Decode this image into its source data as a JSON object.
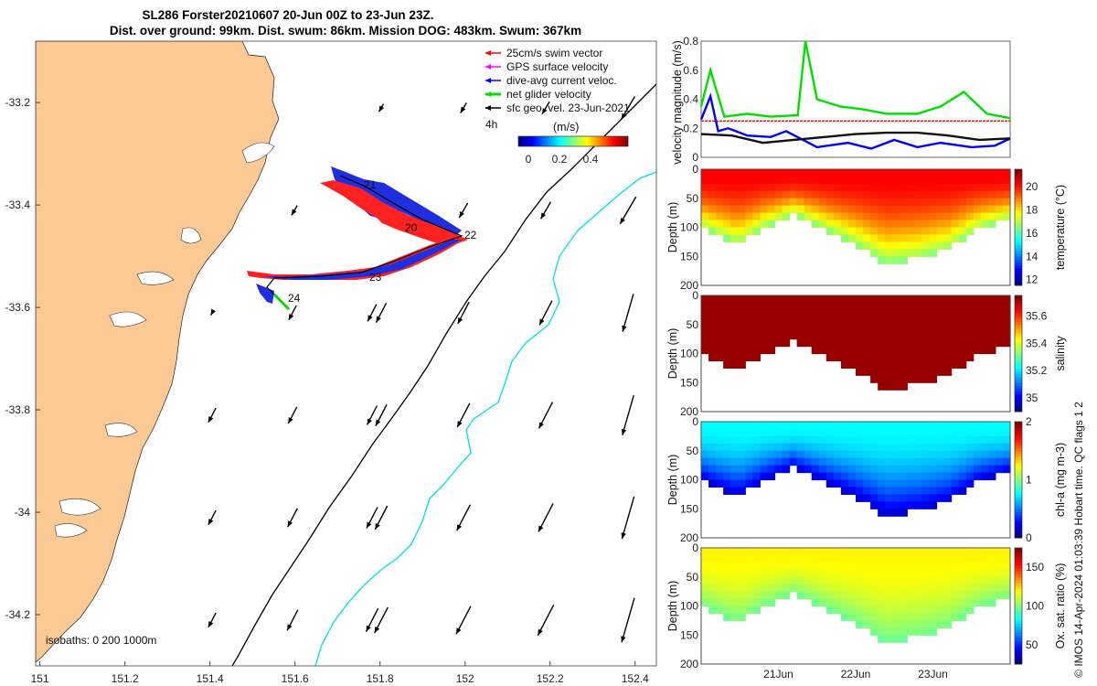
{
  "header": {
    "title_line1": "SL286 Forster20210607 20-Jun 00Z to 23-Jun 23Z.",
    "title_line2": "Dist. over ground: 99km. Dist. swum: 86km. Mission DOG: 483km. Swum: 367km"
  },
  "map": {
    "x_ticks": [
      "151",
      "151.2",
      "151.4",
      "151.6",
      "151.8",
      "152",
      "152.2",
      "152.4"
    ],
    "y_ticks": [
      "-33.2",
      "-33.4",
      "-33.6",
      "-33.8",
      "-34",
      "-34.2"
    ],
    "xlim": [
      150.99,
      152.45
    ],
    "ylim": [
      -34.3,
      -33.08
    ],
    "legend": [
      {
        "label": "25cm/s swim vector",
        "color": "#ff0000"
      },
      {
        "label": "GPS surface velocity",
        "color": "#ff00ff"
      },
      {
        "label": "dive-avg current veloc.",
        "color": "#0000ff"
      },
      {
        "label": "net glider velocity",
        "color": "#00dd00"
      },
      {
        "label": "sfc geo. vel. 23-Jun-2021",
        "color": "#000000"
      }
    ],
    "interval_label": "4h",
    "colorbar_title": "(m/s)",
    "colorbar_ticks": [
      "0",
      "0.2",
      "0.4"
    ],
    "day_labels": [
      "21",
      "20",
      "22",
      "23",
      "24"
    ],
    "isobath_label": "isobaths: 0   200   1000m",
    "land_color": "#fbc994",
    "iso200_color": "#000000",
    "iso1000_color": "#00e0e0"
  },
  "footer_credit": "© IMOS 14-Apr-2024 01:03:39 Hobart time. QC flags 1  2",
  "chart_data": [
    {
      "type": "line",
      "ylabel": "velocity magnitude (m/s)",
      "ylim": [
        0,
        0.8
      ],
      "y_ticks": [
        "0",
        "0.2",
        "0.4",
        "0.6",
        "0.8"
      ],
      "x_range_days": [
        "20-Jun",
        "24-Jun"
      ],
      "series": [
        {
          "color": "#ff0000",
          "x": [
            0,
            0.5,
            1,
            1.5,
            2,
            2.5,
            3,
            3.5,
            4
          ],
          "y": [
            0.25,
            0.25,
            0.25,
            0.25,
            0.25,
            0.25,
            0.25,
            0.25,
            0.25
          ]
        },
        {
          "color": "#00e000",
          "x": [
            0,
            0.12,
            0.3,
            0.6,
            0.9,
            1.25,
            1.35,
            1.5,
            1.8,
            2.1,
            2.4,
            2.8,
            3.1,
            3.4,
            3.7,
            4
          ],
          "y": [
            0.35,
            0.6,
            0.28,
            0.3,
            0.28,
            0.29,
            0.8,
            0.4,
            0.35,
            0.33,
            0.3,
            0.3,
            0.35,
            0.45,
            0.3,
            0.27
          ]
        },
        {
          "color": "#0000ff",
          "x": [
            0,
            0.12,
            0.22,
            0.35,
            0.6,
            0.9,
            1.1,
            1.5,
            1.9,
            2.2,
            2.5,
            2.8,
            3.1,
            3.5,
            3.8,
            4
          ],
          "y": [
            0.26,
            0.42,
            0.18,
            0.2,
            0.15,
            0.14,
            0.18,
            0.07,
            0.1,
            0.06,
            0.12,
            0.07,
            0.1,
            0.07,
            0.08,
            0.13
          ]
        },
        {
          "color": "#111111",
          "x": [
            0,
            0.4,
            0.8,
            1.2,
            1.6,
            2.0,
            2.4,
            2.8,
            3.2,
            3.6,
            4
          ],
          "y": [
            0.16,
            0.15,
            0.1,
            0.12,
            0.14,
            0.16,
            0.17,
            0.17,
            0.15,
            0.12,
            0.13
          ]
        }
      ]
    },
    {
      "type": "heatmap",
      "ylabel": "Depth (m)",
      "clabel": "temperature (°C)",
      "c_ticks": [
        "12",
        "14",
        "16",
        "18",
        "20"
      ],
      "clim": [
        11.5,
        21.5
      ],
      "colorscale": "jet",
      "base_value": 20.3,
      "deep_value": 16.5
    },
    {
      "type": "heatmap",
      "ylabel": "Depth (m)",
      "clabel": "salinity",
      "c_ticks": [
        "35",
        "35.2",
        "35.4",
        "35.6"
      ],
      "clim": [
        34.9,
        35.75
      ],
      "colorscale": "jet",
      "base_value": 35.73,
      "deep_value": 35.73
    },
    {
      "type": "heatmap",
      "ylabel": "Depth (m)",
      "clabel": "chl-a (mg m-3)",
      "c_ticks": [
        "0",
        "1",
        "2"
      ],
      "clim": [
        0,
        2
      ],
      "colorscale": "jet",
      "base_value": 0.75,
      "deep_value": 0.15
    },
    {
      "type": "heatmap",
      "ylabel": "Depth (m)",
      "clabel": "Ox. sat. ratio (%)",
      "c_ticks": [
        "50",
        "100",
        "150"
      ],
      "clim": [
        25,
        175
      ],
      "colorscale": "jet",
      "base_value": 120,
      "deep_value": 97
    }
  ],
  "profile_axis": {
    "depth_ticks": [
      "0",
      "50",
      "100",
      "150",
      "200"
    ],
    "date_ticks": [
      "21Jun",
      "22Jun",
      "23Jun"
    ]
  }
}
